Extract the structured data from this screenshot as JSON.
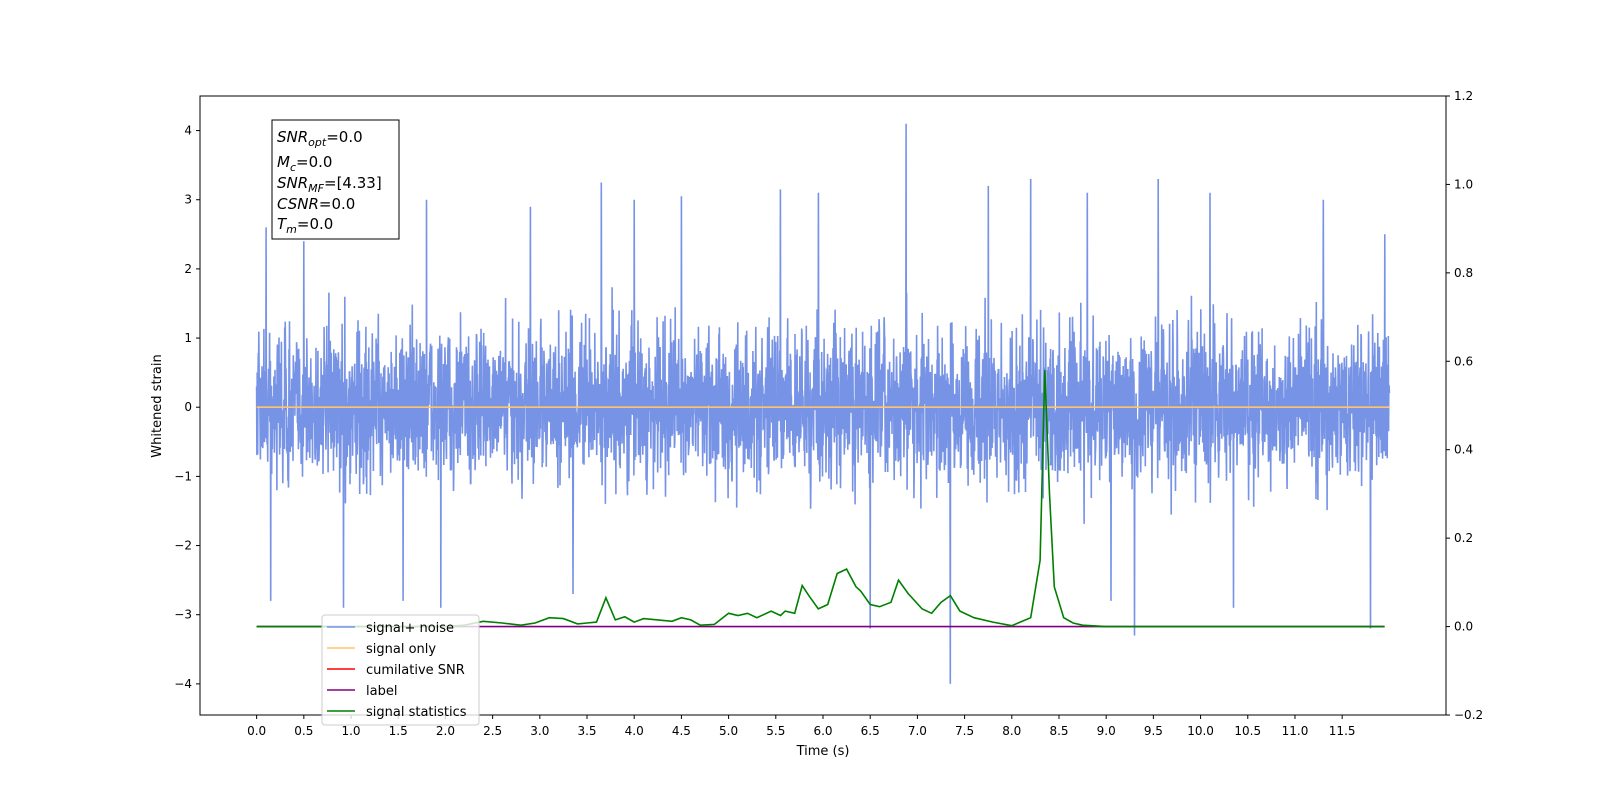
{
  "chart_data": {
    "type": "line",
    "xlabel": "Time (s)",
    "ylabel": "Whitened strain",
    "xlim": [
      -0.6,
      12.6
    ],
    "ylim": [
      -4.45,
      4.5
    ],
    "y2lim": [
      -0.2,
      1.2
    ],
    "grid": false,
    "legend_position": "lower-left",
    "x_ticks": [
      0.0,
      0.5,
      1.0,
      1.5,
      2.0,
      2.5,
      3.0,
      3.5,
      4.0,
      4.5,
      5.0,
      5.5,
      6.0,
      6.5,
      7.0,
      7.5,
      8.0,
      8.5,
      9.0,
      9.5,
      10.0,
      10.5,
      11.0,
      11.5
    ],
    "x_tick_labels": [
      "0.0",
      "0.5",
      "1.0",
      "1.5",
      "2.0",
      "2.5",
      "3.0",
      "3.5",
      "4.0",
      "4.5",
      "5.0",
      "5.5",
      "6.0",
      "6.5",
      "7.0",
      "7.5",
      "8.0",
      "8.5",
      "9.0",
      "9.5",
      "10.0",
      "10.5",
      "11.0",
      "11.5"
    ],
    "y_ticks": [
      4,
      3,
      2,
      1,
      0,
      -1,
      -2,
      -3,
      -4
    ],
    "y_tick_labels": [
      "4",
      "3",
      "2",
      "1",
      "0",
      "−1",
      "−2",
      "−3",
      "−4"
    ],
    "y2_ticks": [
      1.2,
      1.0,
      0.8,
      0.6,
      0.4,
      0.2,
      0.0,
      -0.2
    ],
    "y2_tick_labels": [
      "1.2",
      "1.0",
      "0.8",
      "0.6",
      "0.4",
      "0.2",
      "0.0",
      "−0.2"
    ],
    "series": [
      {
        "name": "signal+ noise",
        "axis": "left",
        "color": "#7793e6",
        "x_range": [
          0.0,
          12.0
        ],
        "y_band": [
          -1.9,
          2.1
        ],
        "peaks": [
          {
            "x": 0.1,
            "y": 2.6
          },
          {
            "x": 0.15,
            "y": -2.8
          },
          {
            "x": 0.5,
            "y": 2.4
          },
          {
            "x": 0.92,
            "y": -2.9
          },
          {
            "x": 1.55,
            "y": -2.8
          },
          {
            "x": 1.8,
            "y": 3.0
          },
          {
            "x": 1.95,
            "y": -2.9
          },
          {
            "x": 2.9,
            "y": 2.9
          },
          {
            "x": 3.35,
            "y": -2.7
          },
          {
            "x": 3.65,
            "y": 3.25
          },
          {
            "x": 4.0,
            "y": 3.0
          },
          {
            "x": 4.5,
            "y": 3.05
          },
          {
            "x": 5.55,
            "y": 3.15
          },
          {
            "x": 5.95,
            "y": 3.1
          },
          {
            "x": 6.5,
            "y": -3.2
          },
          {
            "x": 6.88,
            "y": 4.1
          },
          {
            "x": 7.35,
            "y": -4.0
          },
          {
            "x": 7.75,
            "y": 3.2
          },
          {
            "x": 8.2,
            "y": 3.3
          },
          {
            "x": 8.8,
            "y": 3.1
          },
          {
            "x": 9.05,
            "y": -2.8
          },
          {
            "x": 9.3,
            "y": -3.3
          },
          {
            "x": 9.55,
            "y": 3.3
          },
          {
            "x": 10.1,
            "y": 3.1
          },
          {
            "x": 10.35,
            "y": -2.9
          },
          {
            "x": 11.3,
            "y": 3.0
          },
          {
            "x": 11.8,
            "y": -3.2
          },
          {
            "x": 11.95,
            "y": 2.5
          }
        ]
      },
      {
        "name": "signal only",
        "axis": "left",
        "color": "#ffc46b",
        "x": [
          0.0,
          12.0
        ],
        "y": [
          0.0,
          0.0
        ]
      },
      {
        "name": "cumilative SNR",
        "axis": "right",
        "color": "#ff0000",
        "x": [],
        "y": []
      },
      {
        "name": "label",
        "axis": "right",
        "color": "#800080",
        "x": [
          0.0,
          11.95
        ],
        "y": [
          0.0,
          0.0
        ]
      },
      {
        "name": "signal statistics",
        "axis": "right",
        "color": "#008000",
        "x": [
          0.0,
          0.5,
          1.0,
          1.5,
          2.0,
          2.2,
          2.4,
          2.6,
          2.8,
          2.95,
          3.1,
          3.25,
          3.4,
          3.5,
          3.6,
          3.7,
          3.8,
          3.9,
          4.0,
          4.1,
          4.25,
          4.4,
          4.5,
          4.6,
          4.7,
          4.85,
          5.0,
          5.1,
          5.2,
          5.3,
          5.45,
          5.55,
          5.6,
          5.7,
          5.78,
          5.85,
          5.95,
          6.05,
          6.15,
          6.25,
          6.35,
          6.4,
          6.5,
          6.6,
          6.72,
          6.8,
          6.9,
          7.05,
          7.15,
          7.25,
          7.35,
          7.45,
          7.6,
          7.8,
          8.0,
          8.2,
          8.3,
          8.35,
          8.4,
          8.45,
          8.55,
          8.65,
          8.75,
          9.0,
          9.5,
          10.0,
          10.5,
          11.0,
          11.5,
          11.95
        ],
        "y": [
          0.0,
          0.0,
          0.0,
          0.0,
          0.0,
          0.003,
          0.012,
          0.008,
          0.003,
          0.008,
          0.02,
          0.018,
          0.006,
          0.008,
          0.01,
          0.065,
          0.015,
          0.022,
          0.01,
          0.018,
          0.015,
          0.012,
          0.02,
          0.015,
          0.003,
          0.005,
          0.03,
          0.025,
          0.03,
          0.02,
          0.035,
          0.025,
          0.035,
          0.03,
          0.093,
          0.07,
          0.04,
          0.05,
          0.12,
          0.13,
          0.09,
          0.08,
          0.05,
          0.045,
          0.055,
          0.105,
          0.075,
          0.04,
          0.03,
          0.055,
          0.07,
          0.035,
          0.02,
          0.01,
          0.002,
          0.02,
          0.15,
          0.58,
          0.3,
          0.09,
          0.02,
          0.008,
          0.003,
          0.0,
          0.0,
          0.0,
          0.0,
          0.0,
          0.0,
          0.0
        ]
      }
    ],
    "annotation": {
      "lines": [
        {
          "main": "SNR",
          "sub": "opt",
          "value": "=0.0"
        },
        {
          "main": "M",
          "sub": "c",
          "value": "=0.0"
        },
        {
          "main": "SNR",
          "sub": "MF",
          "value": "=[4.33]"
        },
        {
          "main": "CSNR",
          "sub": "",
          "value": "=0.0"
        },
        {
          "main": "T",
          "sub": "m",
          "value": "=0.0"
        }
      ]
    },
    "legend": [
      "signal+ noise",
      "signal only",
      "cumilative SNR",
      "label",
      "signal statistics"
    ]
  }
}
